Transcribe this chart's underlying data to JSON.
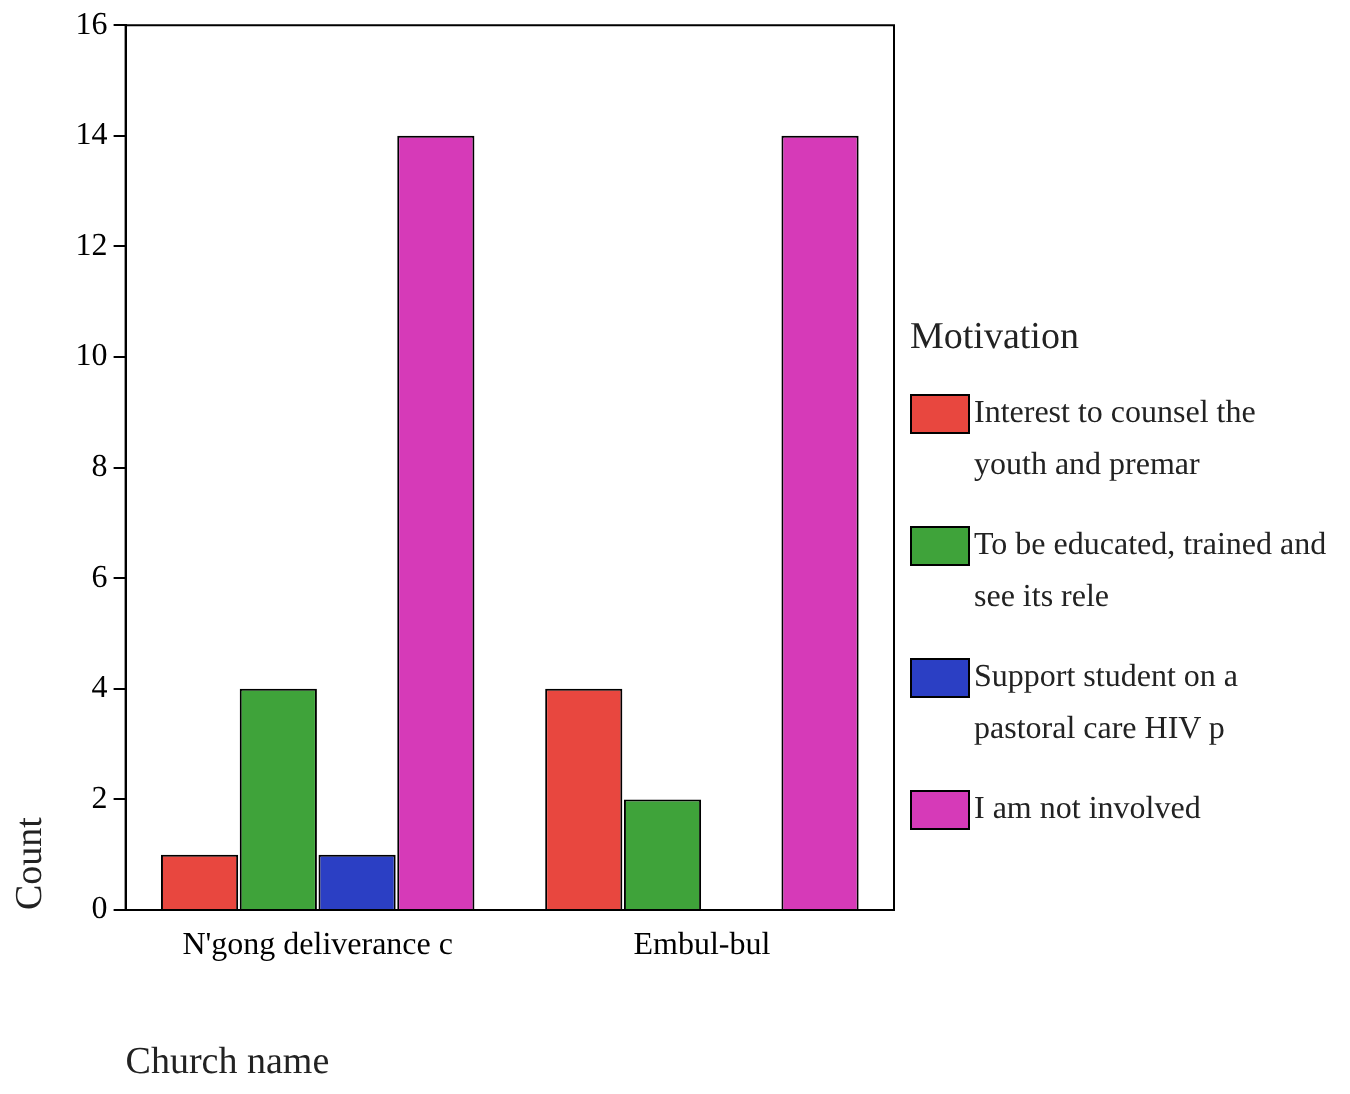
{
  "chart_data": {
    "type": "bar",
    "xlabel": "Church name",
    "ylabel": "Count",
    "legend_title": "Motivation",
    "categories": [
      "N'gong deliverance c",
      "Embul-bul"
    ],
    "series": [
      {
        "name": "Interest to counsel the youth and premar",
        "color": "#e8473f",
        "values": [
          1,
          4
        ]
      },
      {
        "name": "To be educated, trained and see its rele",
        "color": "#3fa33a",
        "values": [
          4,
          2
        ]
      },
      {
        "name": "Support student on a pastoral care HIV p",
        "color": "#2b3fc4",
        "values": [
          1,
          0
        ]
      },
      {
        "name": "I am not involved",
        "color": "#d63ab8",
        "values": [
          14,
          14
        ]
      }
    ],
    "ylim": [
      0,
      16
    ],
    "yticks": [
      0,
      2,
      4,
      6,
      8,
      10,
      12,
      14,
      16
    ],
    "grid": false,
    "legend": "right"
  }
}
